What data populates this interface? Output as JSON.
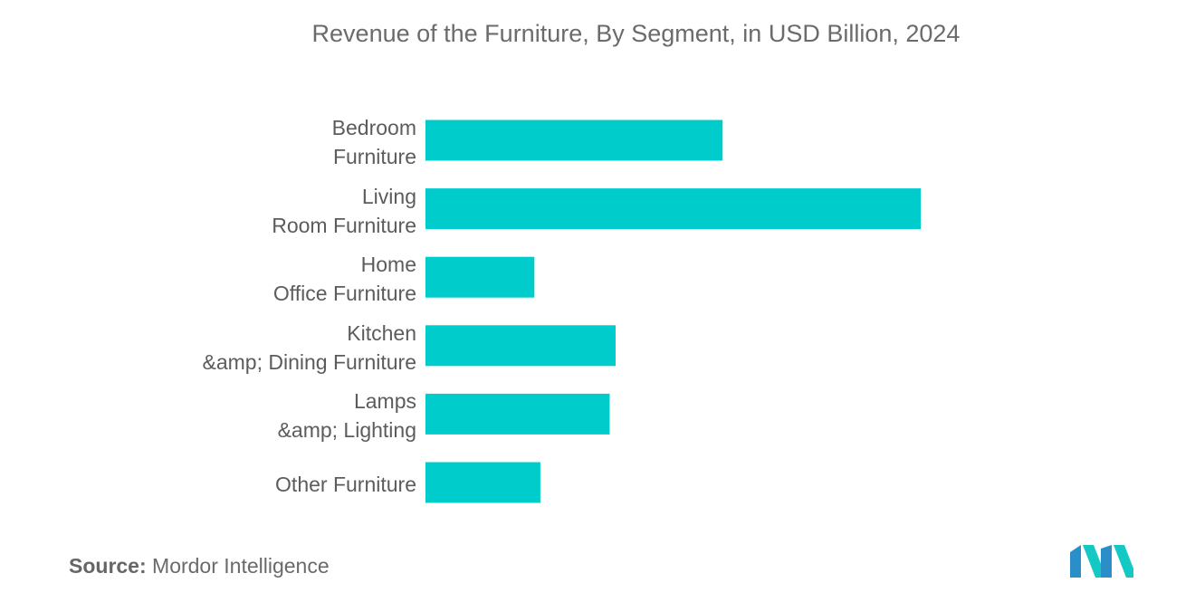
{
  "chart_data": {
    "type": "bar",
    "orientation": "horizontal",
    "title": "Revenue of the Furniture, By Segment, in USD Billion, 2024",
    "categories": [
      [
        "Bedroom",
        "Furniture"
      ],
      [
        "Living",
        "Room Furniture"
      ],
      [
        "Home",
        "Office Furniture"
      ],
      [
        "Kitchen",
        "&amp; Dining Furniture"
      ],
      [
        "Lamps",
        "&amp; Lighting"
      ],
      [
        "Other Furniture"
      ]
    ],
    "values": [
      150,
      250,
      55,
      96,
      93,
      58
    ],
    "xlim": [
      0,
      250
    ],
    "bar_color": "#00cccc",
    "grid": false,
    "xlabel": "",
    "ylabel": ""
  },
  "source": {
    "label": "Source:",
    "text": "Mordor Intelligence"
  },
  "logo": {
    "icon": "mordor-intelligence-logo-icon",
    "colors": [
      "#2a8fc9",
      "#14c9c4"
    ]
  }
}
